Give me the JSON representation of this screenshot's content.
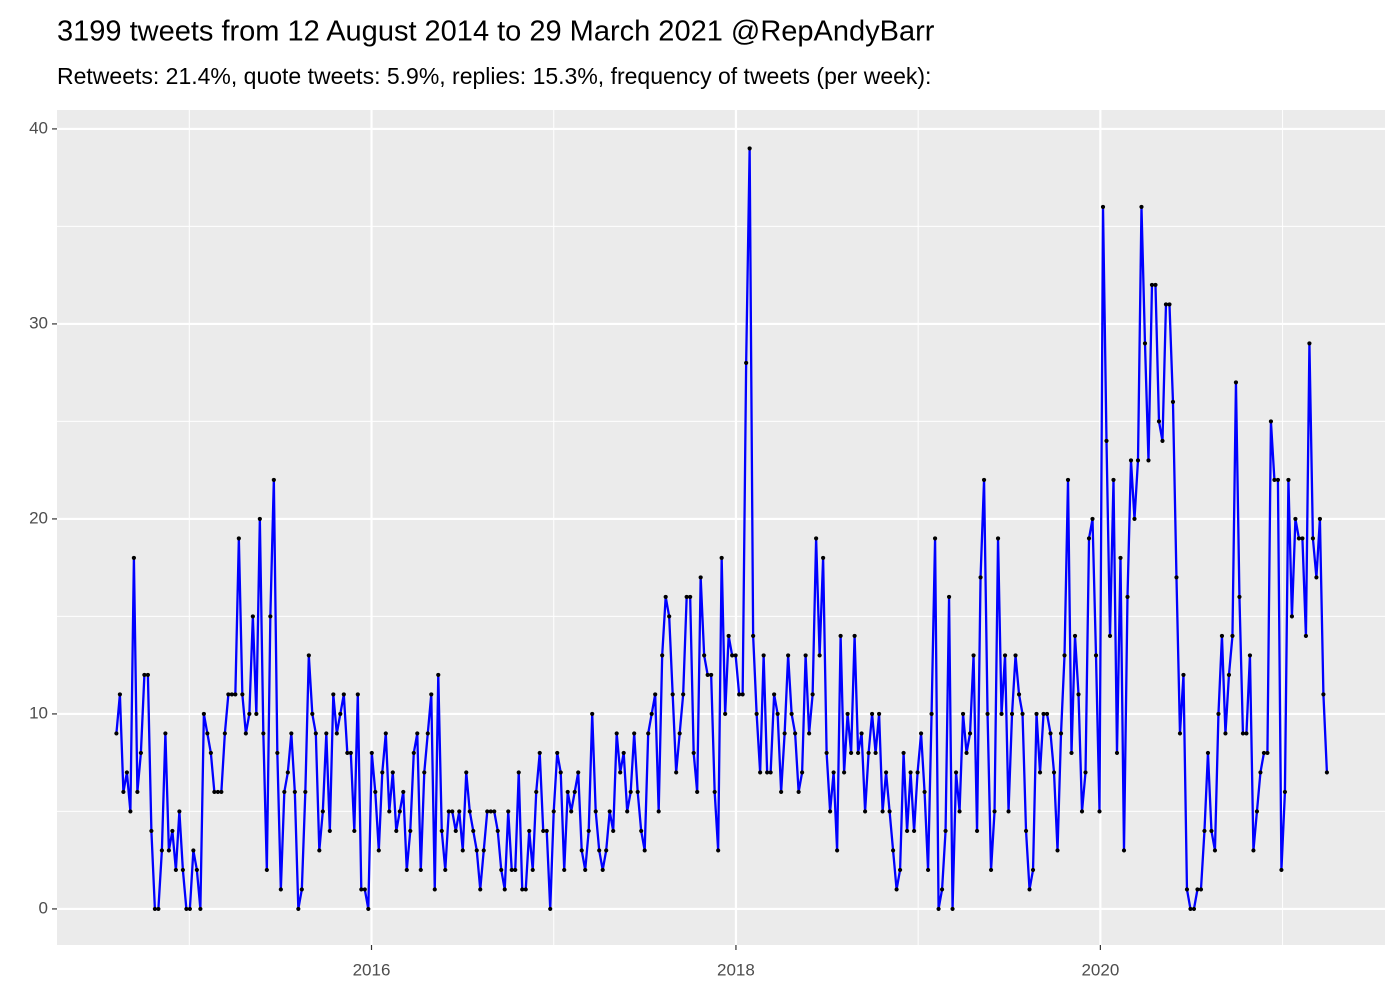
{
  "chart_data": {
    "type": "line",
    "title": "3199 tweets from 12 August 2014 to 29 March 2021 @RepAndyBarr",
    "subtitle": "Retweets: 21.4%, quote tweets: 5.9%, replies: 15.3%, frequency of tweets (per week):",
    "x": [
      2014.6,
      2014.6192,
      2014.6384,
      2014.6576,
      2014.6768,
      2014.696,
      2014.7152,
      2014.7344,
      2014.7536,
      2014.7728,
      2014.792,
      2014.8112,
      2014.8304,
      2014.8496,
      2014.8688,
      2014.888,
      2014.9072,
      2014.9264,
      2014.9456,
      2014.9648,
      2014.984,
      2015.0032,
      2015.0224,
      2015.0416,
      2015.0608,
      2015.08,
      2015.0992,
      2015.1184,
      2015.1376,
      2015.1568,
      2015.176,
      2015.1952,
      2015.2144,
      2015.2336,
      2015.2528,
      2015.272,
      2015.2912,
      2015.3104,
      2015.3296,
      2015.3488,
      2015.368,
      2015.3872,
      2015.4064,
      2015.4256,
      2015.4448,
      2015.464,
      2015.4832,
      2015.5024,
      2015.5216,
      2015.5408,
      2015.56,
      2015.5792,
      2015.5984,
      2015.6176,
      2015.6368,
      2015.656,
      2015.6752,
      2015.6944,
      2015.7136,
      2015.7328,
      2015.752,
      2015.7712,
      2015.7904,
      2015.8096,
      2015.8288,
      2015.848,
      2015.8672,
      2015.8864,
      2015.9056,
      2015.9248,
      2015.944,
      2015.9632,
      2015.9824,
      2016.0016,
      2016.0208,
      2016.04,
      2016.0592,
      2016.0784,
      2016.0976,
      2016.1168,
      2016.136,
      2016.1552,
      2016.1744,
      2016.1936,
      2016.2128,
      2016.232,
      2016.2512,
      2016.2704,
      2016.2896,
      2016.3088,
      2016.328,
      2016.3472,
      2016.3664,
      2016.3856,
      2016.4048,
      2016.424,
      2016.4432,
      2016.4624,
      2016.4816,
      2016.5008,
      2016.52,
      2016.5392,
      2016.5584,
      2016.5776,
      2016.5968,
      2016.616,
      2016.6352,
      2016.6544,
      2016.6736,
      2016.6928,
      2016.712,
      2016.7312,
      2016.7504,
      2016.7696,
      2016.7888,
      2016.808,
      2016.8272,
      2016.8464,
      2016.8656,
      2016.8848,
      2016.904,
      2016.9232,
      2016.9424,
      2016.9616,
      2016.9808,
      2017.0,
      2017.0192,
      2017.0384,
      2017.0576,
      2017.0768,
      2017.096,
      2017.1152,
      2017.1344,
      2017.1536,
      2017.1728,
      2017.192,
      2017.2112,
      2017.2304,
      2017.2496,
      2017.2688,
      2017.288,
      2017.3072,
      2017.3264,
      2017.3456,
      2017.3648,
      2017.384,
      2017.4032,
      2017.4224,
      2017.4416,
      2017.4608,
      2017.48,
      2017.4992,
      2017.5184,
      2017.5376,
      2017.5568,
      2017.576,
      2017.5952,
      2017.6144,
      2017.6336,
      2017.6528,
      2017.672,
      2017.6912,
      2017.7104,
      2017.7296,
      2017.7488,
      2017.768,
      2017.7872,
      2017.8064,
      2017.8256,
      2017.8448,
      2017.864,
      2017.8832,
      2017.9024,
      2017.9216,
      2017.9408,
      2017.96,
      2017.9792,
      2017.9984,
      2018.0176,
      2018.0368,
      2018.056,
      2018.0752,
      2018.0944,
      2018.1136,
      2018.1328,
      2018.152,
      2018.1712,
      2018.1904,
      2018.2096,
      2018.2288,
      2018.248,
      2018.2672,
      2018.2864,
      2018.3056,
      2018.3248,
      2018.344,
      2018.3632,
      2018.3824,
      2018.4016,
      2018.4208,
      2018.44,
      2018.4592,
      2018.4784,
      2018.4976,
      2018.5168,
      2018.536,
      2018.5552,
      2018.5744,
      2018.5936,
      2018.6128,
      2018.632,
      2018.6512,
      2018.6704,
      2018.6896,
      2018.7088,
      2018.728,
      2018.7472,
      2018.7664,
      2018.7856,
      2018.8048,
      2018.824,
      2018.8432,
      2018.8624,
      2018.8816,
      2018.9008,
      2018.92,
      2018.9392,
      2018.9584,
      2018.9776,
      2018.9968,
      2019.016,
      2019.0352,
      2019.0544,
      2019.0736,
      2019.0928,
      2019.112,
      2019.1312,
      2019.1504,
      2019.1696,
      2019.1888,
      2019.208,
      2019.2272,
      2019.2464,
      2019.2656,
      2019.2848,
      2019.304,
      2019.3232,
      2019.3424,
      2019.3616,
      2019.3808,
      2019.4,
      2019.4192,
      2019.4384,
      2019.4576,
      2019.4768,
      2019.496,
      2019.5152,
      2019.5344,
      2019.5536,
      2019.5728,
      2019.592,
      2019.6112,
      2019.6304,
      2019.6496,
      2019.6688,
      2019.688,
      2019.7072,
      2019.7264,
      2019.7456,
      2019.7648,
      2019.784,
      2019.8032,
      2019.8224,
      2019.8416,
      2019.8608,
      2019.88,
      2019.8992,
      2019.9184,
      2019.9376,
      2019.9568,
      2019.976,
      2019.9952,
      2020.0144,
      2020.0336,
      2020.0528,
      2020.072,
      2020.0912,
      2020.1104,
      2020.1296,
      2020.1488,
      2020.168,
      2020.1872,
      2020.2064,
      2020.2256,
      2020.2448,
      2020.264,
      2020.2832,
      2020.3024,
      2020.3216,
      2020.3408,
      2020.36,
      2020.3792,
      2020.3984,
      2020.4176,
      2020.4368,
      2020.456,
      2020.4752,
      2020.4944,
      2020.5136,
      2020.5328,
      2020.552,
      2020.5712,
      2020.5904,
      2020.6096,
      2020.6288,
      2020.648,
      2020.6672,
      2020.6864,
      2020.7056,
      2020.7248,
      2020.744,
      2020.7632,
      2020.7824,
      2020.8016,
      2020.8208,
      2020.84,
      2020.8592,
      2020.8784,
      2020.8976,
      2020.9168,
      2020.936,
      2020.9552,
      2020.9744,
      2020.9936,
      2021.0128,
      2021.032,
      2021.0512,
      2021.0704,
      2021.0896,
      2021.1088,
      2021.128,
      2021.1472,
      2021.1664,
      2021.1856,
      2021.2048,
      2021.224,
      2021.2432
    ],
    "series": [
      {
        "color": "#0000ff",
        "marker_color": "#000000",
        "values": [
          9,
          11,
          6,
          7,
          5,
          18,
          6,
          8,
          12,
          12,
          4,
          0,
          0,
          3,
          9,
          3,
          4,
          2,
          5,
          2,
          0,
          0,
          3,
          2,
          0,
          10,
          9,
          8,
          6,
          6,
          6,
          9,
          11,
          11,
          11,
          19,
          11,
          9,
          10,
          15,
          10,
          20,
          9,
          2,
          15,
          22,
          8,
          1,
          6,
          7,
          9,
          6,
          0,
          1,
          6,
          13,
          10,
          9,
          3,
          5,
          9,
          4,
          11,
          9,
          10,
          11,
          8,
          8,
          4,
          11,
          1,
          1,
          0,
          8,
          6,
          3,
          7,
          9,
          5,
          7,
          4,
          5,
          6,
          2,
          4,
          8,
          9,
          2,
          7,
          9,
          11,
          1,
          12,
          4,
          2,
          5,
          5,
          4,
          5,
          3,
          7,
          5,
          4,
          3,
          1,
          3,
          5,
          5,
          5,
          4,
          2,
          1,
          5,
          2,
          2,
          7,
          1,
          1,
          4,
          2,
          6,
          8,
          4,
          4,
          0,
          5,
          8,
          7,
          2,
          6,
          5,
          6,
          7,
          3,
          2,
          4,
          10,
          5,
          3,
          2,
          3,
          5,
          4,
          9,
          7,
          8,
          5,
          6,
          9,
          6,
          4,
          3,
          9,
          10,
          11,
          5,
          13,
          16,
          15,
          11,
          7,
          9,
          11,
          16,
          16,
          8,
          6,
          17,
          13,
          12,
          12,
          6,
          3,
          18,
          10,
          14,
          13,
          13,
          11,
          11,
          28,
          39,
          14,
          10,
          7,
          13,
          7,
          7,
          11,
          10,
          6,
          9,
          13,
          10,
          9,
          6,
          7,
          13,
          9,
          11,
          19,
          13,
          18,
          8,
          5,
          7,
          3,
          14,
          7,
          10,
          8,
          14,
          8,
          9,
          5,
          8,
          10,
          8,
          10,
          5,
          7,
          5,
          3,
          1,
          2,
          8,
          4,
          7,
          4,
          7,
          9,
          6,
          2,
          10,
          19,
          0,
          1,
          4,
          16,
          0,
          7,
          5,
          10,
          8,
          9,
          13,
          4,
          17,
          22,
          10,
          2,
          5,
          19,
          10,
          13,
          5,
          10,
          13,
          11,
          10,
          4,
          1,
          2,
          10,
          7,
          10,
          10,
          9,
          7,
          3,
          9,
          13,
          22,
          8,
          14,
          11,
          5,
          7,
          19,
          20,
          13,
          5,
          36,
          24,
          14,
          22,
          8,
          18,
          3,
          16,
          23,
          20,
          23,
          36,
          29,
          23,
          32,
          32,
          25,
          24,
          31,
          31,
          26,
          17,
          9,
          12,
          1,
          0,
          0,
          1,
          1,
          4,
          8,
          4,
          3,
          10,
          14,
          9,
          12,
          14,
          27,
          16,
          9,
          9,
          13,
          3,
          5,
          7,
          8,
          8,
          25,
          22,
          22,
          2,
          6,
          22,
          15,
          20,
          19,
          19,
          14,
          29,
          19,
          17,
          20,
          11,
          7
        ]
      }
    ],
    "xlim": [
      2014.274,
      2021.562
    ],
    "xticks": [
      2016,
      2018,
      2020
    ],
    "ylim": [
      -1.85,
      40.97
    ],
    "yticks": [
      0,
      10,
      20,
      30,
      40
    ],
    "grid": true,
    "background": "#ebebeb"
  }
}
